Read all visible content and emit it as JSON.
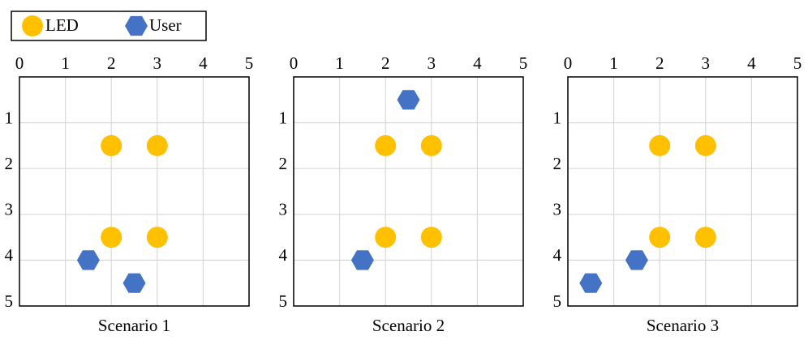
{
  "chart_data": [
    {
      "type": "scatter",
      "xlabel": "Scenario 1",
      "xlim": [
        0,
        5
      ],
      "ylim": [
        0,
        5
      ],
      "y_inverted": true,
      "grid": true,
      "xticks": [
        0,
        1,
        2,
        3,
        4,
        5
      ],
      "yticks": [
        1,
        2,
        3,
        4,
        5
      ],
      "series": [
        {
          "name": "LED",
          "color": "#FFC000",
          "marker": "circle",
          "x": [
            2,
            3,
            2,
            3
          ],
          "values": [
            1.5,
            1.5,
            3.5,
            3.5
          ]
        },
        {
          "name": "User",
          "color": "#4472C4",
          "marker": "hexagon",
          "x": [
            1.5,
            2.5
          ],
          "values": [
            4,
            4.5
          ]
        }
      ]
    },
    {
      "type": "scatter",
      "xlabel": "Scenario 2",
      "xlim": [
        0,
        5
      ],
      "ylim": [
        0,
        5
      ],
      "y_inverted": true,
      "grid": true,
      "xticks": [
        0,
        1,
        2,
        3,
        4,
        5
      ],
      "yticks": [
        1,
        2,
        3,
        4,
        5
      ],
      "series": [
        {
          "name": "LED",
          "color": "#FFC000",
          "marker": "circle",
          "x": [
            2,
            3,
            2,
            3
          ],
          "values": [
            1.5,
            1.5,
            3.5,
            3.5
          ]
        },
        {
          "name": "User",
          "color": "#4472C4",
          "marker": "hexagon",
          "x": [
            2.5,
            1.5
          ],
          "values": [
            0.5,
            4
          ]
        }
      ]
    },
    {
      "type": "scatter",
      "xlabel": "Scenario 3",
      "xlim": [
        0,
        5
      ],
      "ylim": [
        0,
        5
      ],
      "y_inverted": true,
      "grid": true,
      "xticks": [
        0,
        1,
        2,
        3,
        4,
        5
      ],
      "yticks": [
        1,
        2,
        3,
        4,
        5
      ],
      "series": [
        {
          "name": "LED",
          "color": "#FFC000",
          "marker": "circle",
          "x": [
            2,
            3,
            2,
            3
          ],
          "values": [
            1.5,
            1.5,
            3.5,
            3.5
          ]
        },
        {
          "name": "User",
          "color": "#4472C4",
          "marker": "hexagon",
          "x": [
            1.5,
            0.5
          ],
          "values": [
            4,
            4.5
          ]
        }
      ]
    }
  ]
}
